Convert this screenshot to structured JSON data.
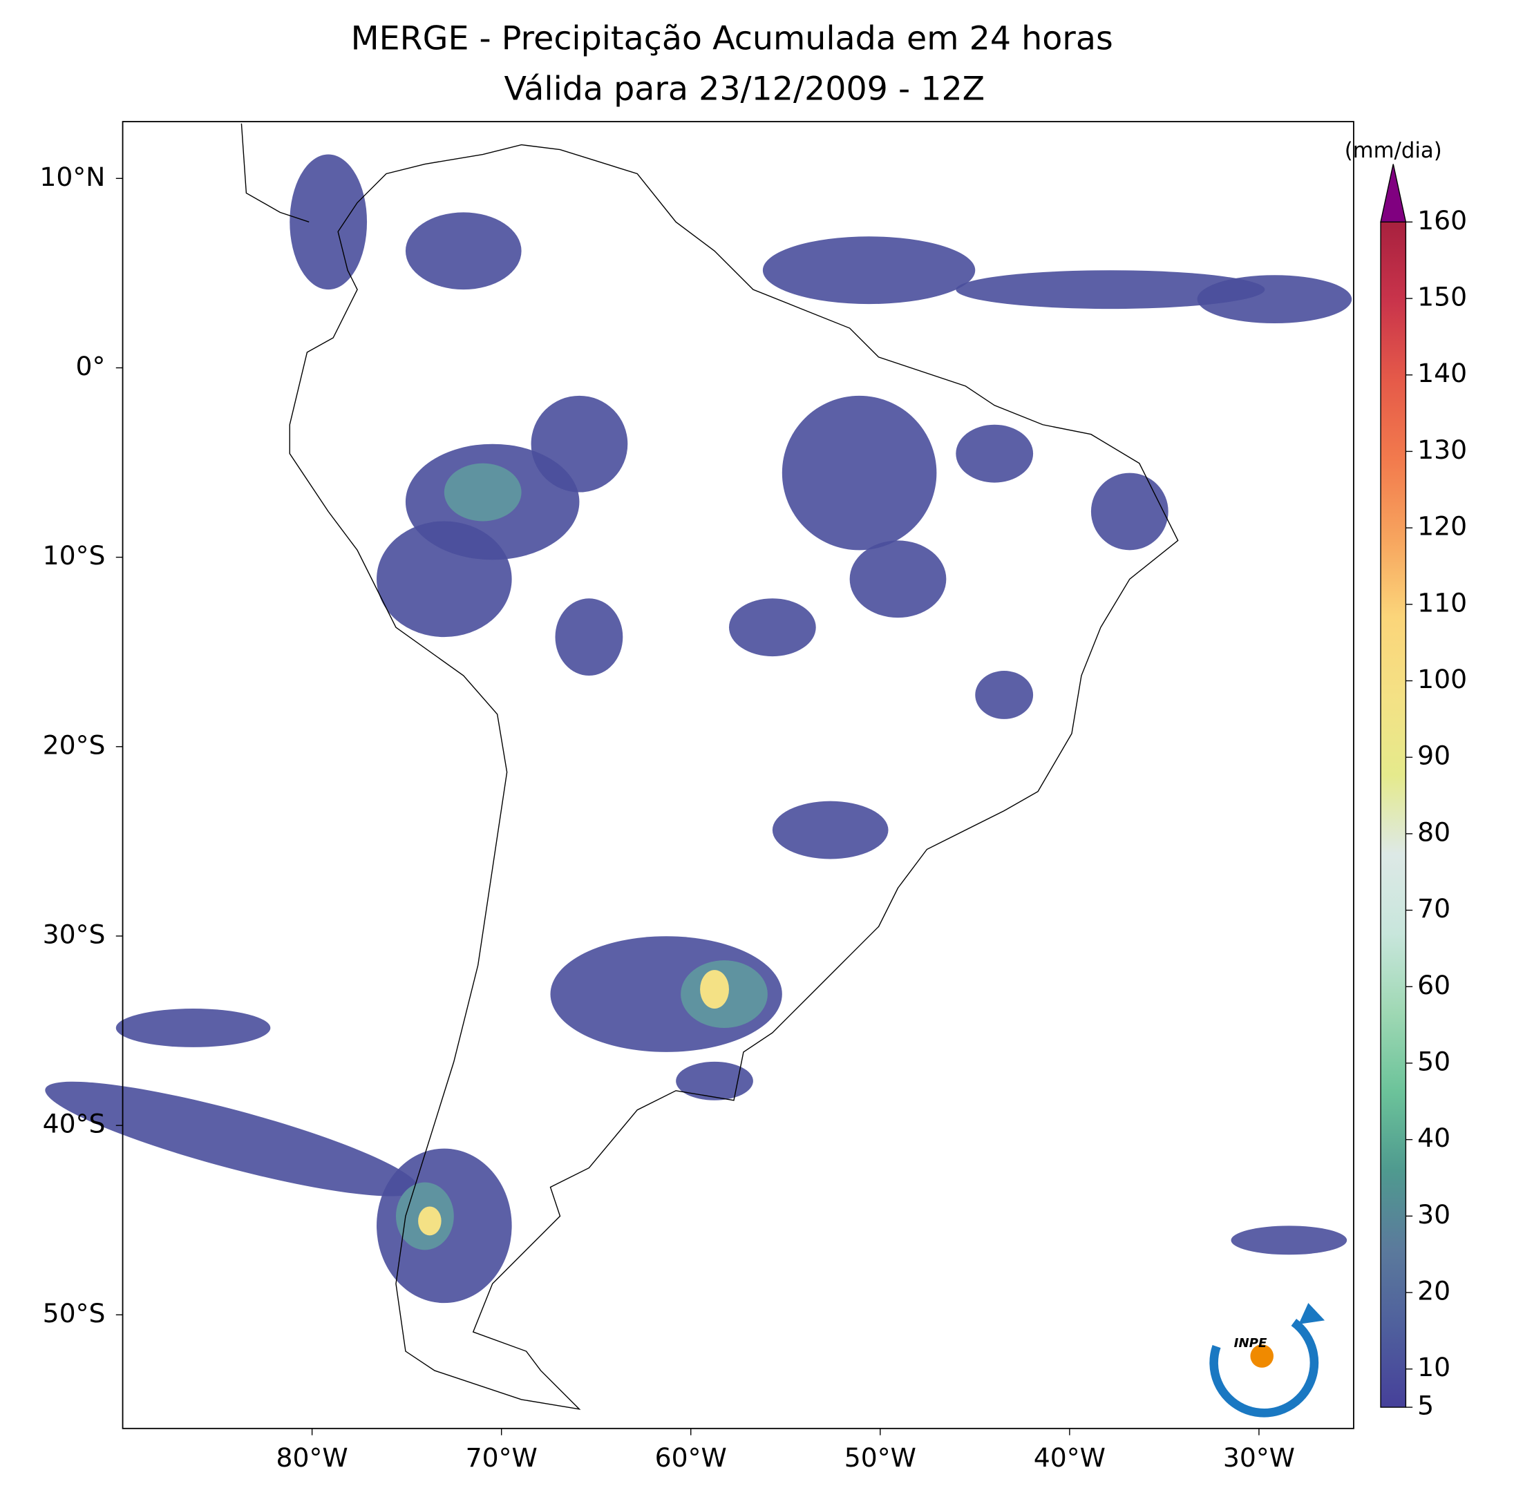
{
  "chart_data": {
    "type": "map",
    "title": "MERGE - Precipitação Acumulada em 24 horas",
    "subtitle": "Válida para 23/12/2009 - 12Z",
    "xlim": [
      -90,
      -25
    ],
    "ylim": [
      -56,
      13
    ],
    "xticks": [
      {
        "value": -80,
        "label": "80°W"
      },
      {
        "value": -70,
        "label": "70°W"
      },
      {
        "value": -60,
        "label": "60°W"
      },
      {
        "value": -50,
        "label": "50°W"
      },
      {
        "value": -40,
        "label": "40°W"
      },
      {
        "value": -30,
        "label": "30°W"
      }
    ],
    "yticks": [
      {
        "value": 10,
        "label": "10°N"
      },
      {
        "value": 0,
        "label": "0°"
      },
      {
        "value": -10,
        "label": "10°S"
      },
      {
        "value": -20,
        "label": "20°S"
      },
      {
        "value": -30,
        "label": "30°S"
      },
      {
        "value": -40,
        "label": "40°S"
      },
      {
        "value": -50,
        "label": "50°S"
      }
    ],
    "colorbar": {
      "label": "(mm/dia)",
      "lim": [
        5,
        160
      ],
      "ticks": [
        5,
        10,
        20,
        30,
        40,
        50,
        60,
        70,
        80,
        90,
        100,
        110,
        120,
        130,
        140,
        150,
        160
      ],
      "colors": [
        "#46409a",
        "#4f5f9d",
        "#5b7a9c",
        "#4f9a8f",
        "#6cc39a",
        "#9fd8b4",
        "#c8e6dc",
        "#dde9e6",
        "#e5ea8c",
        "#f4e185",
        "#fbd57a",
        "#f7a45e",
        "#f27a4d",
        "#e55a49",
        "#c9344b",
        "#a8213f"
      ],
      "extend": "max",
      "extend_color": "#800080"
    }
  },
  "logo": {
    "text": "INPE"
  }
}
